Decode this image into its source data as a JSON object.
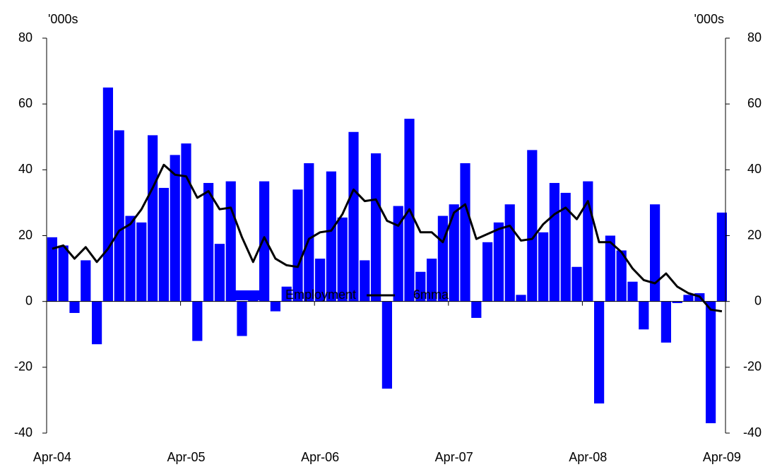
{
  "chart_data": {
    "type": "bar",
    "y_label": "'000s",
    "y2_label": "'000s",
    "categories": [
      "Apr-04",
      null,
      null,
      null,
      null,
      null,
      null,
      null,
      null,
      null,
      null,
      null,
      "Apr-05",
      null,
      null,
      null,
      null,
      null,
      null,
      null,
      null,
      null,
      null,
      null,
      "Apr-06",
      null,
      null,
      null,
      null,
      null,
      null,
      null,
      null,
      null,
      null,
      null,
      "Apr-07",
      null,
      null,
      null,
      null,
      null,
      null,
      null,
      null,
      null,
      null,
      null,
      "Apr-08",
      null,
      null,
      null,
      null,
      null,
      null,
      null,
      null,
      null,
      null,
      null,
      "Apr-09"
    ],
    "series": [
      {
        "name": "Employment",
        "type": "bar",
        "color": "#0000ff",
        "values": [
          19.5,
          17,
          -3.5,
          12.5,
          -13,
          65,
          52,
          26,
          24,
          50.5,
          34.5,
          44.5,
          48,
          -12,
          36,
          17.5,
          36.5,
          -10.5,
          1.5,
          36.5,
          -3,
          4.5,
          34,
          42,
          13,
          39.5,
          25.5,
          51.5,
          12.5,
          45,
          -26.5,
          29,
          55.5,
          9,
          13,
          26,
          29.5,
          42,
          -5,
          18,
          24,
          29.5,
          2,
          46,
          21,
          36,
          33,
          10.5,
          36.5,
          -31,
          20,
          15.5,
          6,
          -8.5,
          29.5,
          -12.5,
          -0.5,
          2,
          2.5,
          -37,
          27
        ]
      },
      {
        "name": "6mma",
        "type": "line",
        "color": "#000000",
        "values": [
          16,
          17,
          13,
          16.5,
          12,
          16,
          21.5,
          23.5,
          28,
          34.5,
          41.5,
          38.5,
          38,
          31.5,
          33.5,
          28,
          28.5,
          19.5,
          12,
          19.5,
          13,
          11,
          10.5,
          19,
          21,
          21.5,
          26.5,
          34,
          30.5,
          31,
          24.5,
          23,
          28,
          21,
          21,
          18,
          27,
          29.5,
          19,
          20.5,
          22,
          23,
          18.5,
          19,
          23.5,
          26.5,
          28.5,
          25,
          30.5,
          18,
          18,
          15,
          10,
          6.5,
          5.5,
          8.5,
          4.5,
          2.5,
          1.5,
          -2.5,
          -3
        ]
      }
    ],
    "ylim": [
      -40,
      80
    ],
    "yticks": [
      -40,
      -20,
      0,
      20,
      40,
      60,
      80
    ],
    "y2lim": [
      -40,
      80
    ],
    "y2ticks": [
      -40,
      -20,
      0,
      20,
      40,
      60,
      80
    ],
    "legend": "bottom"
  }
}
